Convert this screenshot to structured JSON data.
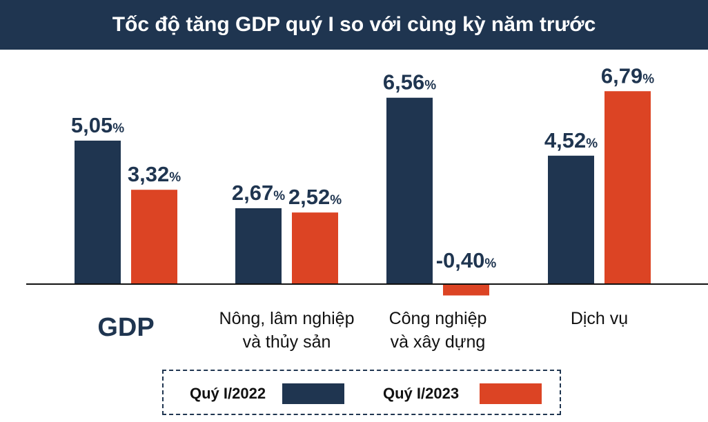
{
  "title": "Tốc độ tăng GDP quý I so với cùng kỳ năm trước",
  "colors": {
    "q2022": "#1f3550",
    "q2023": "#dc4424",
    "title_bg": "#1f3550"
  },
  "chart_data": {
    "type": "bar",
    "title": "Tốc độ tăng GDP quý I so với cùng kỳ năm trước",
    "categories": [
      {
        "lines": [
          "GDP"
        ],
        "emphasis": true
      },
      {
        "lines": [
          "Nông, lâm nghiệp",
          "và thủy sản"
        ]
      },
      {
        "lines": [
          "Công nghiệp",
          "và xây dựng"
        ]
      },
      {
        "lines": [
          "Dịch vụ"
        ]
      }
    ],
    "series": [
      {
        "name": "Quý I/2022",
        "values": [
          5.05,
          2.67,
          6.56,
          4.52
        ],
        "labels": [
          "5,05",
          "2,67",
          "6,56",
          "4,52"
        ]
      },
      {
        "name": "Quý I/2023",
        "values": [
          3.32,
          2.52,
          -0.4,
          6.79
        ],
        "labels": [
          "3,32",
          "2,52",
          "-0,40",
          "6,79"
        ]
      }
    ],
    "unit": "%",
    "grid": false,
    "legend_position": "bottom"
  },
  "legend": {
    "items": [
      "Quý I/2022",
      "Quý I/2023"
    ]
  }
}
